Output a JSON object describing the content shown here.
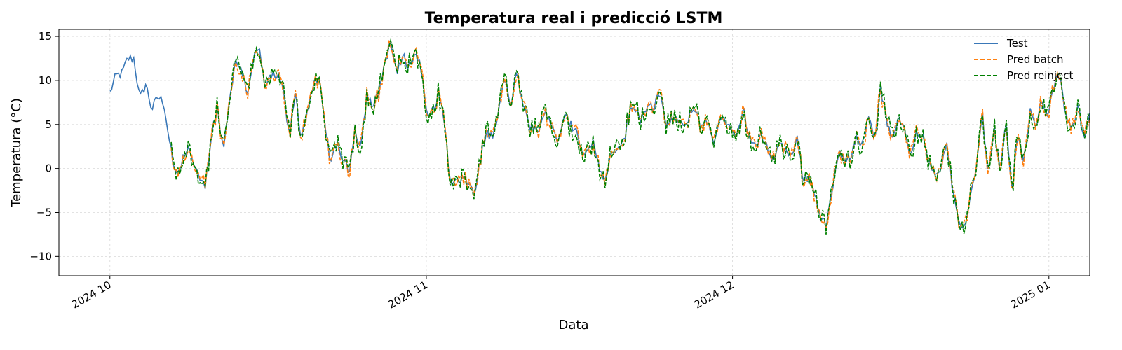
{
  "chart_data": {
    "type": "line",
    "title": "Temperatura real i predicció LSTM",
    "xlabel": "Data",
    "ylabel": "Temperatura (°C)",
    "xlim": [
      "2024-09-26",
      "2025-01-05"
    ],
    "ylim": [
      -12.2,
      15.8
    ],
    "x_ticks": [
      {
        "date": "2024-10-01",
        "label": "2024 10"
      },
      {
        "date": "2024-11-01",
        "label": "2024 11"
      },
      {
        "date": "2024-12-01",
        "label": "2024 12"
      },
      {
        "date": "2025-01-01",
        "label": "2025 01"
      }
    ],
    "y_ticks": [
      -10,
      -5,
      0,
      5,
      10,
      15
    ],
    "grid": true,
    "legend_position": "top-right",
    "series": [
      {
        "name": "Test",
        "color": "#3a78b8",
        "dash": "solid"
      },
      {
        "name": "Pred batch",
        "color": "#ff7f0e",
        "dash": "dashed"
      },
      {
        "name": "Pred reinject",
        "color": "#008000",
        "dash": "dashed"
      }
    ],
    "test_values": [
      {
        "x": "2024-10-01",
        "y": 8.6
      },
      {
        "x": "2024-10-01",
        "y": 10.5
      },
      {
        "x": "2024-10-02",
        "y": 10.8
      },
      {
        "x": "2024-10-02",
        "y": 12.5
      },
      {
        "x": "2024-10-02",
        "y": 12.5
      },
      {
        "x": "2024-10-03",
        "y": 7.9
      },
      {
        "x": "2024-10-03",
        "y": 9.6
      },
      {
        "x": "2024-10-03",
        "y": 6.7
      },
      {
        "x": "2024-10-04",
        "y": 8.1
      },
      {
        "x": "2024-10-04",
        "y": 7.6
      },
      {
        "x": "2024-10-05",
        "y": 2.9
      },
      {
        "x": "2024-10-05",
        "y": -1.0
      },
      {
        "x": "2024-10-06",
        "y": 0.5
      },
      {
        "x": "2024-10-06",
        "y": 2.8
      },
      {
        "x": "2024-10-06",
        "y": 0.4
      },
      {
        "x": "2024-10-07",
        "y": -1.5
      },
      {
        "x": "2024-10-07",
        "y": -2.0
      },
      {
        "x": "2024-10-08",
        "y": 4.0
      },
      {
        "x": "2024-10-08",
        "y": 6.8
      },
      {
        "x": "2024-10-09",
        "y": 2.0
      },
      {
        "x": "2024-10-09",
        "y": 8.0
      },
      {
        "x": "2024-10-10",
        "y": 12.0
      },
      {
        "x": "2024-10-10",
        "y": 11.5
      },
      {
        "x": "2024-10-11",
        "y": 8.5
      },
      {
        "x": "2024-10-12",
        "y": 12.5
      },
      {
        "x": "2024-10-12",
        "y": 13.5
      },
      {
        "x": "2024-10-13",
        "y": 9.0
      },
      {
        "x": "2024-10-13",
        "y": 10.5
      },
      {
        "x": "2024-10-14",
        "y": 10.5
      },
      {
        "x": "2024-10-15",
        "y": 9.0
      },
      {
        "x": "2024-10-15",
        "y": 3.5
      },
      {
        "x": "2024-10-16",
        "y": 8.5
      },
      {
        "x": "2024-10-16",
        "y": 3.5
      },
      {
        "x": "2024-10-17",
        "y": 6.5
      },
      {
        "x": "2024-10-18",
        "y": 9.5
      },
      {
        "x": "2024-10-18",
        "y": 10.0
      },
      {
        "x": "2024-10-19",
        "y": 5.0
      },
      {
        "x": "2024-10-19",
        "y": 0.5
      },
      {
        "x": "2024-10-20",
        "y": 3.0
      },
      {
        "x": "2024-10-21",
        "y": 1.0
      },
      {
        "x": "2024-10-21",
        "y": -0.5
      },
      {
        "x": "2024-10-22",
        "y": 4.5
      },
      {
        "x": "2024-10-22",
        "y": 2.5
      },
      {
        "x": "2024-10-23",
        "y": 8.5
      },
      {
        "x": "2024-10-23",
        "y": 7.0
      },
      {
        "x": "2024-10-24",
        "y": 8.5
      },
      {
        "x": "2024-10-25",
        "y": 12.0
      },
      {
        "x": "2024-10-25",
        "y": 14.5
      },
      {
        "x": "2024-10-26",
        "y": 10.5
      },
      {
        "x": "2024-10-27",
        "y": 13.0
      },
      {
        "x": "2024-10-27",
        "y": 11.5
      },
      {
        "x": "2024-10-28",
        "y": 13.0
      },
      {
        "x": "2024-10-28",
        "y": 12.0
      },
      {
        "x": "2024-10-29",
        "y": 6.0
      },
      {
        "x": "2024-10-30",
        "y": 6.5
      },
      {
        "x": "2024-10-30",
        "y": 8.5
      },
      {
        "x": "2024-10-31",
        "y": 5.5
      },
      {
        "x": "2024-11-01",
        "y": -2.0
      },
      {
        "x": "2024-11-01",
        "y": -1.5
      },
      {
        "x": "2024-11-02",
        "y": -1.3
      },
      {
        "x": "2024-11-03",
        "y": -1.5
      },
      {
        "x": "2024-11-03",
        "y": -3.0
      },
      {
        "x": "2024-11-04",
        "y": 1.0
      },
      {
        "x": "2024-11-04",
        "y": 4.0
      },
      {
        "x": "2024-11-05",
        "y": 3.5
      },
      {
        "x": "2024-11-06",
        "y": 6.0
      },
      {
        "x": "2024-11-06",
        "y": 10.5
      },
      {
        "x": "2024-11-07",
        "y": 7.0
      },
      {
        "x": "2024-11-07",
        "y": 10.5
      },
      {
        "x": "2024-11-08",
        "y": 8.0
      },
      {
        "x": "2024-11-09",
        "y": 5.0
      },
      {
        "x": "2024-11-09",
        "y": 4.5
      },
      {
        "x": "2024-11-10",
        "y": 4.5
      },
      {
        "x": "2024-11-11",
        "y": 6.5
      },
      {
        "x": "2024-11-11",
        "y": 5.0
      },
      {
        "x": "2024-11-12",
        "y": 3.0
      },
      {
        "x": "2024-11-13",
        "y": 6.0
      },
      {
        "x": "2024-11-13",
        "y": 5.0
      },
      {
        "x": "2024-11-14",
        "y": 4.5
      },
      {
        "x": "2024-11-14",
        "y": 1.5
      },
      {
        "x": "2024-11-15",
        "y": 2.0
      },
      {
        "x": "2024-11-16",
        "y": 3.5
      },
      {
        "x": "2024-11-16",
        "y": -0.5
      },
      {
        "x": "2024-11-17",
        "y": -1.0
      },
      {
        "x": "2024-11-18",
        "y": 2.0
      },
      {
        "x": "2024-11-18",
        "y": 2.5
      },
      {
        "x": "2024-11-19",
        "y": 3.0
      },
      {
        "x": "2024-11-20",
        "y": 6.5
      },
      {
        "x": "2024-11-20",
        "y": 7.0
      },
      {
        "x": "2024-11-21",
        "y": 5.5
      },
      {
        "x": "2024-11-22",
        "y": 7.5
      },
      {
        "x": "2024-11-22",
        "y": 7.0
      },
      {
        "x": "2024-11-23",
        "y": 8.5
      },
      {
        "x": "2024-11-24",
        "y": 5.0
      },
      {
        "x": "2024-11-24",
        "y": 5.5
      },
      {
        "x": "2024-11-25",
        "y": 5.5
      },
      {
        "x": "2024-11-26",
        "y": 4.5
      },
      {
        "x": "2024-11-26",
        "y": 6.0
      },
      {
        "x": "2024-11-27",
        "y": 7.0
      },
      {
        "x": "2024-11-28",
        "y": 4.5
      },
      {
        "x": "2024-11-28",
        "y": 5.5
      },
      {
        "x": "2024-11-29",
        "y": 3.0
      },
      {
        "x": "2024-11-30",
        "y": 5.5
      },
      {
        "x": "2024-11-30",
        "y": 5.5
      },
      {
        "x": "2024-12-01",
        "y": 4.0
      },
      {
        "x": "2024-12-01",
        "y": 3.5
      },
      {
        "x": "2024-12-02",
        "y": 7.0
      },
      {
        "x": "2024-12-02",
        "y": 3.5
      },
      {
        "x": "2024-12-03",
        "y": 2.5
      },
      {
        "x": "2024-12-04",
        "y": 3.5
      },
      {
        "x": "2024-12-04",
        "y": 2.5
      },
      {
        "x": "2024-12-05",
        "y": 1.0
      },
      {
        "x": "2024-12-06",
        "y": 3.0
      },
      {
        "x": "2024-12-06",
        "y": 2.0
      },
      {
        "x": "2024-12-07",
        "y": 1.5
      },
      {
        "x": "2024-12-07",
        "y": 3.5
      },
      {
        "x": "2024-12-08",
        "y": -1.0
      },
      {
        "x": "2024-12-09",
        "y": -1.0
      },
      {
        "x": "2024-12-09",
        "y": -3.0
      },
      {
        "x": "2024-12-10",
        "y": -5.5
      },
      {
        "x": "2024-12-10",
        "y": -6.5
      },
      {
        "x": "2024-12-11",
        "y": -2.0
      },
      {
        "x": "2024-12-12",
        "y": 2.0
      },
      {
        "x": "2024-12-12",
        "y": 0.5
      },
      {
        "x": "2024-12-13",
        "y": 1.5
      },
      {
        "x": "2024-12-13",
        "y": 4.0
      },
      {
        "x": "2024-12-14",
        "y": 2.5
      },
      {
        "x": "2024-12-15",
        "y": 6.0
      },
      {
        "x": "2024-12-15",
        "y": 3.5
      },
      {
        "x": "2024-12-16",
        "y": 9.0
      },
      {
        "x": "2024-12-17",
        "y": 5.5
      },
      {
        "x": "2024-12-17",
        "y": 3.0
      },
      {
        "x": "2024-12-18",
        "y": 6.0
      },
      {
        "x": "2024-12-18",
        "y": 4.5
      },
      {
        "x": "2024-12-19",
        "y": 1.5
      },
      {
        "x": "2024-12-20",
        "y": 4.5
      },
      {
        "x": "2024-12-20",
        "y": 3.5
      },
      {
        "x": "2024-12-21",
        "y": 1.0
      },
      {
        "x": "2024-12-22",
        "y": -1.0
      },
      {
        "x": "2024-12-22",
        "y": -0.5
      },
      {
        "x": "2024-12-23",
        "y": 3.0
      },
      {
        "x": "2024-12-24",
        "y": -2.0
      },
      {
        "x": "2024-12-24",
        "y": -5.5
      },
      {
        "x": "2024-12-25",
        "y": -7.0
      },
      {
        "x": "2024-12-25",
        "y": -3.5
      },
      {
        "x": "2024-12-26",
        "y": 0.0
      },
      {
        "x": "2024-12-26",
        "y": 6.5
      },
      {
        "x": "2024-12-27",
        "y": -0.5
      },
      {
        "x": "2024-12-28",
        "y": 4.5
      },
      {
        "x": "2024-12-28",
        "y": 0.0
      },
      {
        "x": "2024-12-29",
        "y": 5.0
      },
      {
        "x": "2024-12-30",
        "y": -2.5
      },
      {
        "x": "2024-12-30",
        "y": 4.0
      },
      {
        "x": "2024-12-31",
        "y": 1.0
      },
      {
        "x": "2024-12-31",
        "y": 6.5
      },
      {
        "x": "2025-01-01",
        "y": 4.5
      },
      {
        "x": "2025-01-01",
        "y": 8.0
      },
      {
        "x": "2025-01-02",
        "y": 5.5
      },
      {
        "x": "2025-01-02",
        "y": 9.5
      },
      {
        "x": "2025-01-03",
        "y": 10.5
      },
      {
        "x": "2025-01-03",
        "y": 6.0
      },
      {
        "x": "2025-01-04",
        "y": 4.0
      },
      {
        "x": "2025-01-04",
        "y": 7.5
      },
      {
        "x": "2025-01-05",
        "y": 3.5
      },
      {
        "x": "2025-01-05",
        "y": 6.5
      }
    ]
  },
  "legend": {
    "test": "Test",
    "pred_batch": "Pred batch",
    "pred_reinject": "Pred reinject"
  }
}
